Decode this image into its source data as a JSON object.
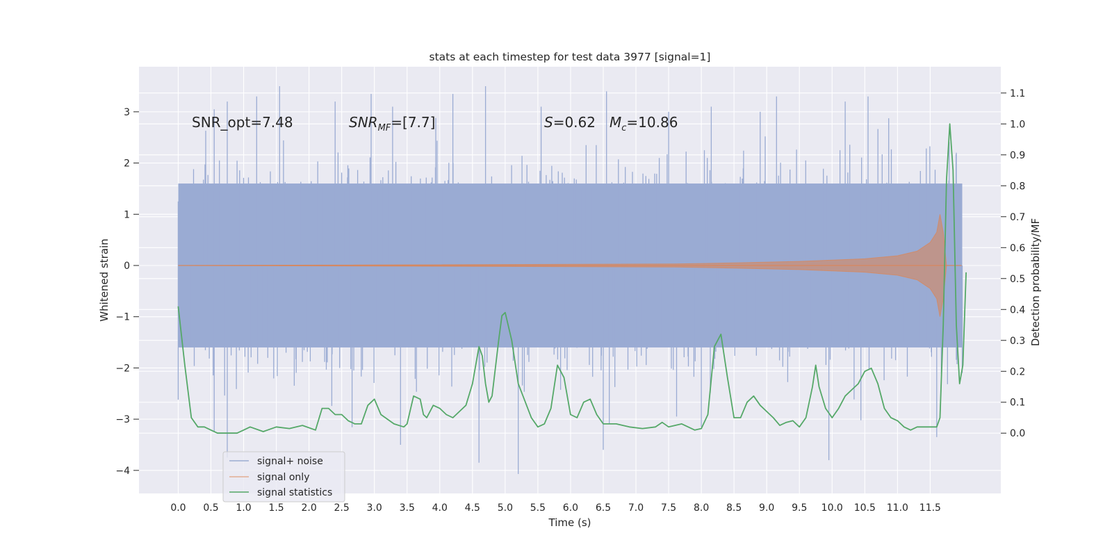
{
  "chart_data": {
    "type": "line",
    "title": "stats at each timestep for test data 3977 [signal=1]",
    "xlabel": "Time (s)",
    "ylabel": "Whitened strain",
    "y2label": "Detection probability/MF",
    "xlim": [
      -0.6,
      12.58
    ],
    "ylim": [
      -4.45,
      3.88
    ],
    "y2lim": [
      -0.195,
      1.185
    ],
    "x_ticks": [
      0.0,
      0.5,
      1.0,
      1.5,
      2.0,
      2.5,
      3.0,
      3.5,
      4.0,
      4.5,
      5.0,
      5.5,
      6.0,
      6.5,
      7.0,
      7.5,
      8.0,
      8.5,
      9.0,
      9.5,
      10.0,
      10.5,
      11.0,
      11.5
    ],
    "x_tick_labels": [
      "0.0",
      "0.5",
      "1.0",
      "1.5",
      "2.0",
      "2.5",
      "3.0",
      "3.5",
      "4.0",
      "4.5",
      "5.0",
      "5.5",
      "6.0",
      "6.5",
      "7.0",
      "7.5",
      "8.0",
      "8.5",
      "9.0",
      "9.5",
      "10.0",
      "10.5",
      "11.0",
      "11.5"
    ],
    "y_ticks": [
      -4,
      -3,
      -2,
      -1,
      0,
      1,
      2,
      3
    ],
    "y_tick_labels": [
      "−4",
      "−3",
      "−2",
      "−1",
      "0",
      "1",
      "2",
      "3"
    ],
    "y2_ticks": [
      0.0,
      0.1,
      0.2,
      0.3,
      0.4,
      0.5,
      0.6,
      0.7,
      0.8,
      0.9,
      1.0,
      1.1
    ],
    "y2_tick_labels": [
      "0.0",
      "0.1",
      "0.2",
      "0.3",
      "0.4",
      "0.5",
      "0.6",
      "0.7",
      "0.8",
      "0.9",
      "1.0",
      "1.1"
    ],
    "grid": true,
    "legend_position": "lower-left",
    "annotations": {
      "snr_opt": "SNR_opt=7.48",
      "snr_mf_main": "SNR",
      "snr_mf_sub": "MF",
      "snr_mf_rest": "=[7.7]",
      "s_italic": "S",
      "s_rest": "=0.62",
      "mc_main": "M",
      "mc_sub": "c",
      "mc_rest": "=10.86"
    },
    "series": [
      {
        "name": "signal+ noise",
        "axis": "left",
        "color": "#4c72b0",
        "x_range": [
          0.0,
          11.99
        ],
        "envelope_low": -1.6,
        "envelope_high": 1.6,
        "spike_extremes": [
          {
            "x": 0.0,
            "y": 1.25
          },
          {
            "x": 0.0,
            "y": -2.62
          },
          {
            "x": 0.42,
            "y": 2.63
          },
          {
            "x": 0.55,
            "y": -3.25
          },
          {
            "x": 0.55,
            "y": 3.05
          },
          {
            "x": 0.75,
            "y": 3.2
          },
          {
            "x": 0.75,
            "y": -3.75
          },
          {
            "x": 1.2,
            "y": 3.3
          },
          {
            "x": 1.55,
            "y": 3.5
          },
          {
            "x": 2.4,
            "y": 3.2
          },
          {
            "x": 2.95,
            "y": 3.35
          },
          {
            "x": 3.4,
            "y": -3.5
          },
          {
            "x": 4.2,
            "y": 3.35
          },
          {
            "x": 4.6,
            "y": -3.85
          },
          {
            "x": 4.7,
            "y": 3.5
          },
          {
            "x": 5.2,
            "y": -4.07
          },
          {
            "x": 5.55,
            "y": 3.1
          },
          {
            "x": 6.5,
            "y": -3.6
          },
          {
            "x": 6.55,
            "y": 3.4
          },
          {
            "x": 7.5,
            "y": 3.0
          },
          {
            "x": 8.0,
            "y": -3.15
          },
          {
            "x": 8.9,
            "y": 3.0
          },
          {
            "x": 9.15,
            "y": 3.3
          },
          {
            "x": 9.95,
            "y": -3.8
          },
          {
            "x": 10.2,
            "y": 3.2
          },
          {
            "x": 10.55,
            "y": 3.3
          },
          {
            "x": 11.6,
            "y": -3.35
          },
          {
            "x": 11.9,
            "y": 2.2
          },
          {
            "x": 11.99,
            "y": -2.1
          }
        ]
      },
      {
        "name": "signal only",
        "axis": "left",
        "color": "#dd8452",
        "x_range": [
          0.0,
          11.98
        ],
        "envelope": [
          {
            "x": 0.0,
            "y": 0.0
          },
          {
            "x": 7.6,
            "y": 0.03
          },
          {
            "x": 8.5,
            "y": 0.05
          },
          {
            "x": 9.5,
            "y": 0.08
          },
          {
            "x": 10.5,
            "y": 0.13
          },
          {
            "x": 11.0,
            "y": 0.19
          },
          {
            "x": 11.3,
            "y": 0.28
          },
          {
            "x": 11.5,
            "y": 0.45
          },
          {
            "x": 11.6,
            "y": 0.65
          },
          {
            "x": 11.65,
            "y": 1.0
          },
          {
            "x": 11.7,
            "y": 0.65
          },
          {
            "x": 11.75,
            "y": 0.0
          },
          {
            "x": 11.98,
            "y": 0.0
          }
        ]
      },
      {
        "name": "signal statistics",
        "axis": "right",
        "color": "#55a868",
        "points": [
          {
            "x": 0.0,
            "y": 0.41
          },
          {
            "x": 0.1,
            "y": 0.22
          },
          {
            "x": 0.2,
            "y": 0.05
          },
          {
            "x": 0.3,
            "y": 0.02
          },
          {
            "x": 0.4,
            "y": 0.02
          },
          {
            "x": 0.5,
            "y": 0.01
          },
          {
            "x": 0.6,
            "y": 0.0
          },
          {
            "x": 0.8,
            "y": 0.0
          },
          {
            "x": 0.9,
            "y": 0.0
          },
          {
            "x": 1.0,
            "y": 0.01
          },
          {
            "x": 1.1,
            "y": 0.02
          },
          {
            "x": 1.3,
            "y": 0.005
          },
          {
            "x": 1.5,
            "y": 0.02
          },
          {
            "x": 1.7,
            "y": 0.015
          },
          {
            "x": 1.9,
            "y": 0.025
          },
          {
            "x": 2.1,
            "y": 0.01
          },
          {
            "x": 2.2,
            "y": 0.08
          },
          {
            "x": 2.3,
            "y": 0.08
          },
          {
            "x": 2.4,
            "y": 0.06
          },
          {
            "x": 2.5,
            "y": 0.06
          },
          {
            "x": 2.6,
            "y": 0.04
          },
          {
            "x": 2.7,
            "y": 0.03
          },
          {
            "x": 2.8,
            "y": 0.03
          },
          {
            "x": 2.9,
            "y": 0.09
          },
          {
            "x": 3.0,
            "y": 0.11
          },
          {
            "x": 3.1,
            "y": 0.06
          },
          {
            "x": 3.3,
            "y": 0.03
          },
          {
            "x": 3.45,
            "y": 0.02
          },
          {
            "x": 3.5,
            "y": 0.03
          },
          {
            "x": 3.6,
            "y": 0.12
          },
          {
            "x": 3.7,
            "y": 0.11
          },
          {
            "x": 3.75,
            "y": 0.06
          },
          {
            "x": 3.8,
            "y": 0.05
          },
          {
            "x": 3.9,
            "y": 0.09
          },
          {
            "x": 4.0,
            "y": 0.08
          },
          {
            "x": 4.1,
            "y": 0.06
          },
          {
            "x": 4.2,
            "y": 0.05
          },
          {
            "x": 4.3,
            "y": 0.07
          },
          {
            "x": 4.4,
            "y": 0.09
          },
          {
            "x": 4.5,
            "y": 0.16
          },
          {
            "x": 4.6,
            "y": 0.28
          },
          {
            "x": 4.65,
            "y": 0.25
          },
          {
            "x": 4.7,
            "y": 0.16
          },
          {
            "x": 4.75,
            "y": 0.1
          },
          {
            "x": 4.8,
            "y": 0.12
          },
          {
            "x": 4.9,
            "y": 0.3
          },
          {
            "x": 4.95,
            "y": 0.38
          },
          {
            "x": 5.0,
            "y": 0.39
          },
          {
            "x": 5.1,
            "y": 0.3
          },
          {
            "x": 5.2,
            "y": 0.16
          },
          {
            "x": 5.4,
            "y": 0.05
          },
          {
            "x": 5.5,
            "y": 0.02
          },
          {
            "x": 5.6,
            "y": 0.03
          },
          {
            "x": 5.7,
            "y": 0.08
          },
          {
            "x": 5.8,
            "y": 0.22
          },
          {
            "x": 5.9,
            "y": 0.18
          },
          {
            "x": 6.0,
            "y": 0.06
          },
          {
            "x": 6.1,
            "y": 0.05
          },
          {
            "x": 6.2,
            "y": 0.1
          },
          {
            "x": 6.3,
            "y": 0.11
          },
          {
            "x": 6.4,
            "y": 0.06
          },
          {
            "x": 6.5,
            "y": 0.03
          },
          {
            "x": 6.7,
            "y": 0.03
          },
          {
            "x": 6.9,
            "y": 0.02
          },
          {
            "x": 7.1,
            "y": 0.015
          },
          {
            "x": 7.3,
            "y": 0.02
          },
          {
            "x": 7.4,
            "y": 0.035
          },
          {
            "x": 7.5,
            "y": 0.02
          },
          {
            "x": 7.7,
            "y": 0.03
          },
          {
            "x": 7.9,
            "y": 0.01
          },
          {
            "x": 8.0,
            "y": 0.015
          },
          {
            "x": 8.1,
            "y": 0.06
          },
          {
            "x": 8.2,
            "y": 0.28
          },
          {
            "x": 8.3,
            "y": 0.32
          },
          {
            "x": 8.4,
            "y": 0.18
          },
          {
            "x": 8.5,
            "y": 0.05
          },
          {
            "x": 8.6,
            "y": 0.05
          },
          {
            "x": 8.7,
            "y": 0.1
          },
          {
            "x": 8.8,
            "y": 0.12
          },
          {
            "x": 8.9,
            "y": 0.09
          },
          {
            "x": 9.0,
            "y": 0.07
          },
          {
            "x": 9.1,
            "y": 0.05
          },
          {
            "x": 9.2,
            "y": 0.025
          },
          {
            "x": 9.3,
            "y": 0.035
          },
          {
            "x": 9.4,
            "y": 0.04
          },
          {
            "x": 9.5,
            "y": 0.02
          },
          {
            "x": 9.6,
            "y": 0.05
          },
          {
            "x": 9.7,
            "y": 0.15
          },
          {
            "x": 9.75,
            "y": 0.22
          },
          {
            "x": 9.8,
            "y": 0.15
          },
          {
            "x": 9.9,
            "y": 0.08
          },
          {
            "x": 10.0,
            "y": 0.05
          },
          {
            "x": 10.1,
            "y": 0.08
          },
          {
            "x": 10.2,
            "y": 0.12
          },
          {
            "x": 10.3,
            "y": 0.14
          },
          {
            "x": 10.4,
            "y": 0.16
          },
          {
            "x": 10.5,
            "y": 0.2
          },
          {
            "x": 10.6,
            "y": 0.21
          },
          {
            "x": 10.7,
            "y": 0.16
          },
          {
            "x": 10.8,
            "y": 0.08
          },
          {
            "x": 10.9,
            "y": 0.05
          },
          {
            "x": 11.0,
            "y": 0.04
          },
          {
            "x": 11.1,
            "y": 0.02
          },
          {
            "x": 11.2,
            "y": 0.01
          },
          {
            "x": 11.3,
            "y": 0.02
          },
          {
            "x": 11.5,
            "y": 0.02
          },
          {
            "x": 11.6,
            "y": 0.02
          },
          {
            "x": 11.65,
            "y": 0.05
          },
          {
            "x": 11.7,
            "y": 0.35
          },
          {
            "x": 11.75,
            "y": 0.82
          },
          {
            "x": 11.8,
            "y": 1.0
          },
          {
            "x": 11.85,
            "y": 0.85
          },
          {
            "x": 11.9,
            "y": 0.35
          },
          {
            "x": 11.95,
            "y": 0.16
          },
          {
            "x": 12.0,
            "y": 0.22
          },
          {
            "x": 12.05,
            "y": 0.52
          }
        ]
      }
    ]
  }
}
